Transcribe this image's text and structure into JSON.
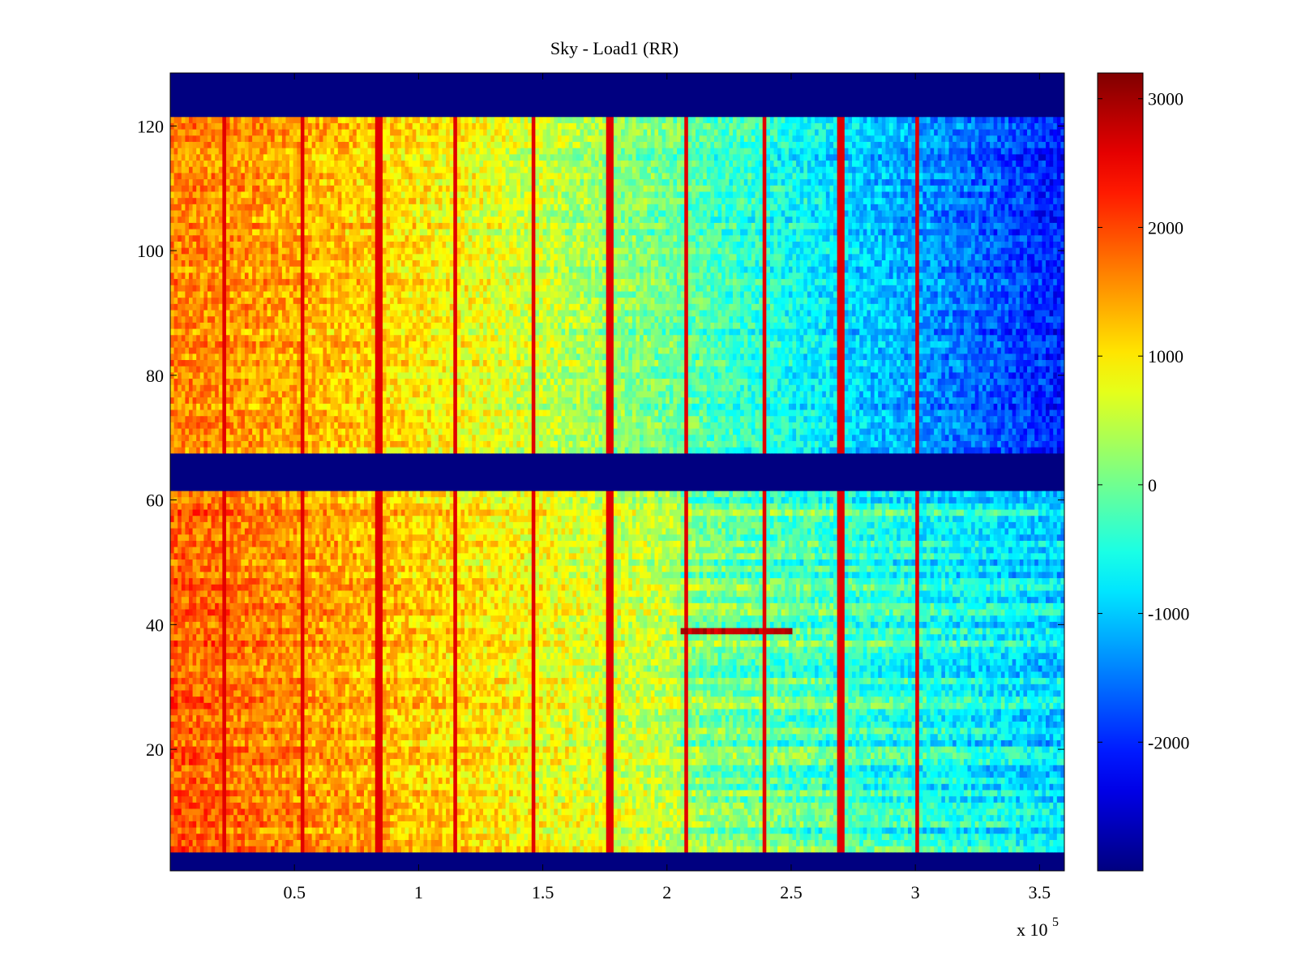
{
  "chart_data": {
    "type": "heatmap",
    "title": "Sky - Load1 (RR)",
    "xlabel": "",
    "ylabel": "",
    "x_multiplier_label": "x 10",
    "x_multiplier_exponent": "5",
    "xlim": [
      0,
      3.6
    ],
    "ylim": [
      0.5,
      128.5
    ],
    "x_ticks": [
      0.5,
      1,
      1.5,
      2,
      2.5,
      3,
      3.5
    ],
    "x_tick_labels": [
      "0.5",
      "1",
      "1.5",
      "2",
      "2.5",
      "3",
      "3.5"
    ],
    "y_ticks": [
      20,
      40,
      60,
      80,
      100,
      120
    ],
    "y_tick_labels": [
      "20",
      "40",
      "60",
      "80",
      "100",
      "120"
    ],
    "colorbar": {
      "colormap": "jet",
      "clim": [
        -3000,
        3200
      ],
      "ticks": [
        3000,
        2000,
        1000,
        0,
        -1000,
        -2000
      ],
      "tick_labels": [
        "3000",
        "2000",
        "1000",
        "0",
        "-1000",
        "-2000"
      ]
    },
    "masked_row_ranges": [
      [
        1,
        3
      ],
      [
        62,
        67
      ],
      [
        122,
        128
      ]
    ],
    "fill_value": -3000,
    "upper_block": {
      "rows": [
        68,
        121
      ],
      "value_start": 1600,
      "value_end": -2100
    },
    "lower_block": {
      "rows": [
        4,
        61
      ],
      "value_start": 1900,
      "value_end": -700,
      "step_at": 2.05
    },
    "vertical_lines_x": [
      0.22,
      0.53,
      0.84,
      1.15,
      1.46,
      1.77,
      2.08,
      2.39,
      2.7,
      3.01
    ],
    "anomaly_row": {
      "row": 39,
      "x_range": [
        2.05,
        2.5
      ],
      "value": 2800
    }
  }
}
